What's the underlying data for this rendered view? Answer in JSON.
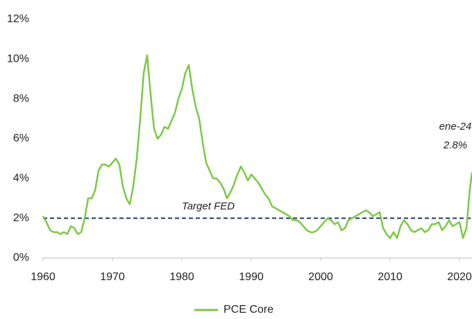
{
  "chart_data": {
    "type": "line",
    "series": [
      {
        "name": "PCE Core",
        "color": "#7ac943",
        "values": [
          2.1,
          1.8,
          1.4,
          1.3,
          1.3,
          1.2,
          1.3,
          1.2,
          1.6,
          1.5,
          1.2,
          1.3,
          2.0,
          3.0,
          3.0,
          3.4,
          4.4,
          4.7,
          4.7,
          4.6,
          4.8,
          5.0,
          4.7,
          3.6,
          3.0,
          2.7,
          3.6,
          5.0,
          7.0,
          9.3,
          10.2,
          9.0,
          7.5,
          6.5,
          6.0,
          6.2,
          6.6,
          6.5,
          6.9,
          7.3,
          8.0,
          8.5,
          9.3,
          9.7,
          8.5,
          7.6,
          7.0,
          5.8,
          4.8,
          4.4,
          4.0,
          4.0,
          3.8,
          3.5,
          3.0,
          3.3,
          3.7,
          4.2,
          4.6,
          4.3,
          3.9,
          4.2,
          4.0,
          3.8,
          3.5,
          3.2,
          3.0,
          2.6,
          2.5,
          2.4,
          2.3,
          2.2,
          2.1,
          1.9,
          1.9,
          1.8,
          1.6,
          1.4,
          1.3,
          1.3,
          1.4,
          1.6,
          1.8,
          2.0,
          1.9,
          1.7,
          1.8,
          1.4,
          1.5,
          1.9,
          2.0,
          2.1,
          2.2,
          2.3,
          2.4,
          2.3,
          2.1,
          2.2,
          2.3,
          1.5,
          1.2,
          1.0,
          1.3,
          1.0,
          1.6,
          1.9,
          1.7,
          1.4,
          1.3,
          1.4,
          1.5,
          1.3,
          1.4,
          1.7,
          1.7,
          1.8,
          1.4,
          1.6,
          1.9,
          1.6,
          1.7,
          1.8,
          1.0,
          1.5,
          3.5,
          4.3
        ]
      }
    ],
    "x": [
      1960,
      1960.5,
      1961,
      1961.5,
      1962,
      1962.5,
      1963,
      1963.5,
      1964,
      1964.5,
      1965,
      1965.5,
      1966,
      1966.5,
      1967,
      1967.5,
      1968,
      1968.5,
      1969,
      1969.5,
      1970,
      1970.5,
      1971,
      1971.5,
      1972,
      1972.5,
      1973,
      1973.5,
      1974,
      1974.5,
      1975,
      1975.3,
      1975.7,
      1976,
      1976.5,
      1977,
      1977.5,
      1978,
      1978.5,
      1979,
      1979.5,
      1980,
      1980.5,
      1981,
      1981.5,
      1982,
      1982.5,
      1983,
      1983.5,
      1984,
      1984.5,
      1985,
      1985.5,
      1986,
      1986.5,
      1987,
      1987.5,
      1988,
      1988.5,
      1989,
      1989.5,
      1990,
      1990.5,
      1991,
      1991.5,
      1992,
      1992.5,
      1993,
      1993.5,
      1994,
      1994.5,
      1995,
      1995.5,
      1996,
      1996.5,
      1997,
      1997.5,
      1998,
      1998.5,
      1999,
      1999.5,
      2000,
      2000.5,
      2001,
      2001.5,
      2002,
      2002.5,
      2003,
      2003.5,
      2004,
      2004.5,
      2005,
      2005.5,
      2006,
      2006.5,
      2007,
      2007.5,
      2008,
      2008.5,
      2009,
      2009.5,
      2010,
      2010.5,
      2011,
      2011.5,
      2012,
      2012.5,
      2013,
      2013.5,
      2014,
      2014.5,
      2015,
      2015.5,
      2016,
      2016.5,
      2017,
      2017.5,
      2018,
      2018.5,
      2019,
      2019.5,
      2020,
      2020.5,
      2021,
      2021.5,
      2021.8
    ],
    "xlim": [
      1960,
      2021.8
    ],
    "xticks": [
      1960,
      1970,
      1980,
      1990,
      2000,
      2010,
      2020
    ],
    "ylim": [
      0,
      12
    ],
    "yticks": [
      {
        "value": 0,
        "label": "0%"
      },
      {
        "value": 2,
        "label": "2%"
      },
      {
        "value": 4,
        "label": "4%"
      },
      {
        "value": 6,
        "label": "6%"
      },
      {
        "value": 8,
        "label": "8%"
      },
      {
        "value": 10,
        "label": "10%"
      },
      {
        "value": 12,
        "label": "12%"
      }
    ],
    "target": {
      "label": "Target FED",
      "value": 2,
      "color": "#1f3864"
    },
    "annotation": {
      "date": "ene-24",
      "value_label": "2.8%"
    },
    "legend": "bottom"
  }
}
